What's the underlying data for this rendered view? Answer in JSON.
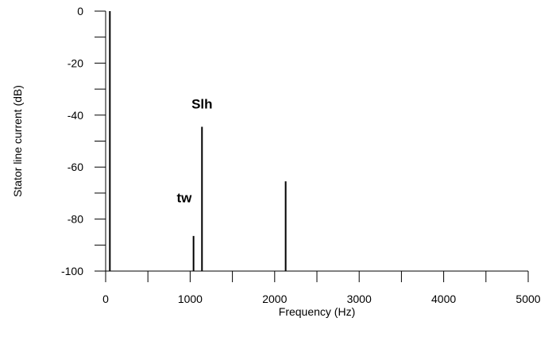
{
  "chart_data": {
    "type": "line",
    "xlabel": "Frequency (Hz)",
    "ylabel": "Stator line current (dB)",
    "xlim": [
      0,
      5000
    ],
    "ylim": [
      -100,
      0
    ],
    "x_ticks": [
      0,
      1000,
      2000,
      3000,
      4000,
      5000
    ],
    "x_tick_labels": [
      "0",
      "1000",
      "2000",
      "3000",
      "4000",
      "5000"
    ],
    "y_ticks": [
      0,
      -20,
      -40,
      -60,
      -80,
      -100
    ],
    "y_tick_labels": [
      "0",
      "-20",
      "-40",
      "-60",
      "-80",
      "-100"
    ],
    "grid": false,
    "baseline": -100,
    "peaks": [
      {
        "x": 50,
        "y": 0
      },
      {
        "x": 1040,
        "y": -86.5
      },
      {
        "x": 1140,
        "y": -44.5
      },
      {
        "x": 2130,
        "y": -65.5
      }
    ],
    "annotations": [
      {
        "text": "Slh",
        "x": 1140,
        "y": -37.5
      },
      {
        "text": "tw",
        "x": 930,
        "y": -73.5
      }
    ]
  }
}
